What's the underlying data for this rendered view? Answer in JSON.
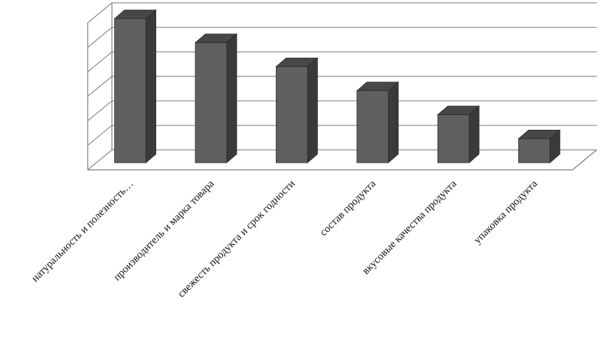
{
  "chart_data": {
    "type": "bar",
    "subtype": "3d-column",
    "title": "",
    "xlabel": "",
    "ylabel": "",
    "categories": [
      "натуральность и полезность…",
      "производитель и марка товара",
      "свежесть продукта  и срок годности",
      "состав продукта",
      "вкусовые качества продукта",
      "упаковка продукта"
    ],
    "values": [
      6,
      5,
      4,
      3,
      2,
      1
    ],
    "ylim": [
      0,
      6
    ],
    "grid": true,
    "legend": "none",
    "y_tick_labels_shown": false,
    "colors": {
      "bar_front": "#5f5f5f",
      "bar_side": "#3a3a3a",
      "bar_top": "#474747",
      "gridline": "#8a8a8a",
      "axis": "#7a7a7a"
    }
  }
}
